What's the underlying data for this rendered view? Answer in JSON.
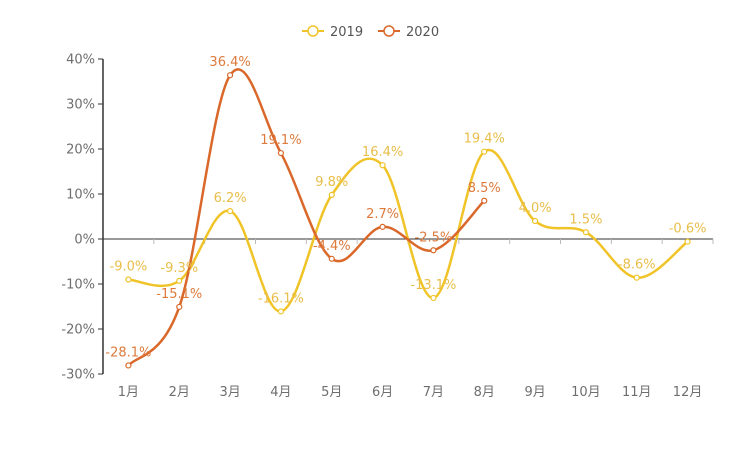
{
  "chart_data": {
    "type": "line",
    "title": "",
    "xlabel": "",
    "ylabel": "",
    "categories": [
      "1月",
      "2月",
      "3月",
      "4月",
      "5月",
      "6月",
      "7月",
      "8月",
      "9月",
      "10月",
      "11月",
      "12月"
    ],
    "ylim": [
      -30,
      40
    ],
    "yticks": [
      -30,
      -20,
      -10,
      0,
      10,
      20,
      30,
      40
    ],
    "ytick_labels": [
      "-30%",
      "-20%",
      "-10%",
      "0%",
      "10%",
      "20%",
      "30%",
      "40%"
    ],
    "legend_position": "top-center",
    "smooth": true,
    "series": [
      {
        "name": "2019",
        "color": "#f0c428",
        "label_color": "#e8be4a",
        "values": [
          -9.0,
          -9.3,
          6.2,
          -16.1,
          9.8,
          16.4,
          -13.1,
          19.4,
          4.0,
          1.5,
          -8.6,
          -0.6
        ],
        "labels": [
          "-9.0%",
          "-9.3%",
          "6.2%",
          "-16.1%",
          "9.8%",
          "16.4%",
          "-13.1%",
          "19.4%",
          "4.0%",
          "1.5%",
          "-8.6%",
          "-0.6%"
        ]
      },
      {
        "name": "2020",
        "color": "#d9682a",
        "label_color": "#dd7a3c",
        "values": [
          -28.1,
          -15.1,
          36.4,
          19.1,
          -4.4,
          2.7,
          -2.5,
          8.5
        ],
        "labels": [
          "-28.1%",
          "-15.1%",
          "36.4%",
          "19.1%",
          "-4.4%",
          "2.7%",
          "-2.5%",
          "8.5%"
        ]
      }
    ]
  }
}
